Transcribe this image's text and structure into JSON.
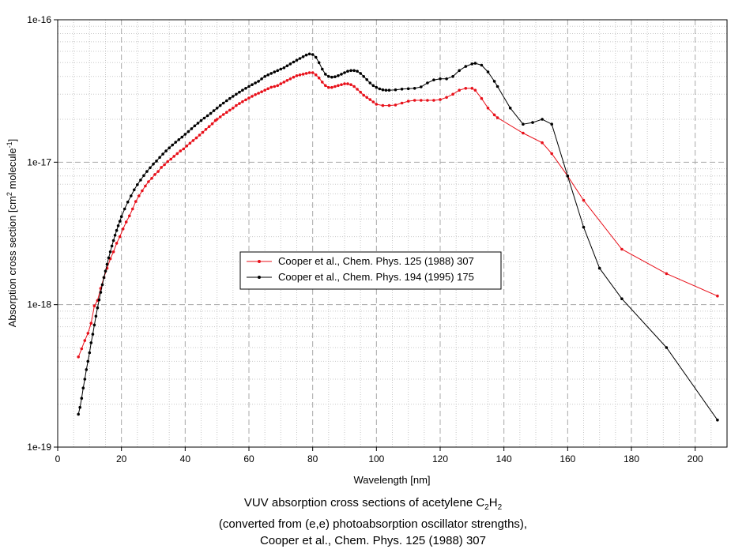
{
  "chart_data": {
    "type": "line",
    "xlabel": "Wavelength [nm]",
    "ylabel": {
      "text": "Absorption cross section [cm",
      "sup1": "2",
      "mid": " molecule",
      "sup2": "-1",
      "end": "]"
    },
    "yscale": "log",
    "xlim": [
      0,
      210
    ],
    "ylim": [
      1e-19,
      1e-16
    ],
    "x_ticks": [
      0,
      20,
      40,
      60,
      80,
      100,
      120,
      140,
      160,
      180,
      200
    ],
    "y_tick_labels": [
      "1e-16",
      "1e-17",
      "1e-18",
      "1e-19"
    ],
    "y_tick_values": [
      1e-16,
      1e-17,
      1e-18,
      1e-19
    ],
    "grid": true,
    "legend_position": "center-left",
    "series": [
      {
        "name": "Cooper et al., Chem. Phys. 125 (1988) 307",
        "color": "#e8101a",
        "x": [
          6.5,
          7.5,
          8.5,
          9.5,
          10.5,
          11.5,
          12.5,
          13.5,
          14.5,
          15.5,
          16.5,
          17.5,
          18.5,
          19.5,
          20.5,
          21.5,
          22.5,
          23.5,
          24.5,
          25.5,
          26.5,
          27.5,
          28.5,
          29.5,
          30.5,
          31.5,
          32.5,
          33.5,
          34.5,
          35.5,
          36.5,
          37.5,
          38.5,
          39.5,
          40.5,
          41.5,
          42.5,
          43.5,
          44.5,
          45.5,
          46.5,
          47.5,
          48.5,
          49.5,
          50,
          51,
          52,
          53,
          54,
          55,
          56,
          57,
          58,
          59,
          60,
          61,
          62,
          63,
          64,
          65,
          66,
          67,
          68,
          69,
          70,
          71,
          72,
          73,
          74,
          75,
          76,
          77,
          78,
          79,
          80,
          81,
          82,
          83,
          84,
          85,
          86,
          87,
          88,
          89,
          90,
          91,
          92,
          93,
          94,
          95,
          96,
          97,
          98,
          99,
          100,
          102,
          104,
          106,
          108,
          110,
          112,
          114,
          116,
          118,
          120,
          122,
          124,
          126,
          128,
          130,
          131,
          133,
          135,
          137,
          138,
          146,
          152,
          155,
          160,
          165,
          177,
          191,
          207
        ],
        "values": [
          4.3e-19,
          4.9e-19,
          5.6e-19,
          6.3e-19,
          7.4e-19,
          9.8e-19,
          1.07e-18,
          1.3e-18,
          1.55e-18,
          1.8e-18,
          2.1e-18,
          2.35e-18,
          2.7e-18,
          3e-18,
          3.4e-18,
          3.8e-18,
          4.2e-18,
          4.7e-18,
          5.3e-18,
          5.8e-18,
          6.3e-18,
          6.8e-18,
          7.3e-18,
          7.7e-18,
          8.2e-18,
          8.6e-18,
          9.2e-18,
          9.6e-18,
          1.01e-17,
          1.05e-17,
          1.1e-17,
          1.15e-17,
          1.2e-17,
          1.24e-17,
          1.3e-17,
          1.36e-17,
          1.42e-17,
          1.48e-17,
          1.55e-17,
          1.62e-17,
          1.7e-17,
          1.78e-17,
          1.86e-17,
          1.96e-17,
          2e-17,
          2.08e-17,
          2.16e-17,
          2.24e-17,
          2.32e-17,
          2.4e-17,
          2.5e-17,
          2.58e-17,
          2.66e-17,
          2.74e-17,
          2.82e-17,
          2.9e-17,
          2.98e-17,
          3.05e-17,
          3.12e-17,
          3.2e-17,
          3.28e-17,
          3.36e-17,
          3.4e-17,
          3.45e-17,
          3.55e-17,
          3.65e-17,
          3.75e-17,
          3.85e-17,
          3.95e-17,
          4.05e-17,
          4.1e-17,
          4.15e-17,
          4.2e-17,
          4.25e-17,
          4.25e-17,
          4.1e-17,
          3.9e-17,
          3.65e-17,
          3.45e-17,
          3.35e-17,
          3.35e-17,
          3.4e-17,
          3.45e-17,
          3.5e-17,
          3.55e-17,
          3.55e-17,
          3.5e-17,
          3.4e-17,
          3.25e-17,
          3.1e-17,
          2.95e-17,
          2.85e-17,
          2.75e-17,
          2.65e-17,
          2.55e-17,
          2.5e-17,
          2.5e-17,
          2.52e-17,
          2.6e-17,
          2.68e-17,
          2.72e-17,
          2.72e-17,
          2.72e-17,
          2.72e-17,
          2.75e-17,
          2.85e-17,
          3e-17,
          3.2e-17,
          3.3e-17,
          3.3e-17,
          3.2e-17,
          2.8e-17,
          2.4e-17,
          2.15e-17,
          2.05e-17,
          1.6e-17,
          1.37e-17,
          1.15e-17,
          8e-18,
          5.4e-18,
          2.45e-18,
          1.65e-18,
          1.15e-18
        ]
      },
      {
        "name": "Cooper et al., Chem. Phys. 194 (1995) 175",
        "color": "#000000",
        "x": [
          6.5,
          7.0,
          7.5,
          8.0,
          8.5,
          9.0,
          9.5,
          10.0,
          10.5,
          11.0,
          11.5,
          12.0,
          12.5,
          13.0,
          13.5,
          14.0,
          14.5,
          15.0,
          15.5,
          16.0,
          16.5,
          17.0,
          17.5,
          18.0,
          18.5,
          19.0,
          19.5,
          20.0,
          21,
          22,
          23,
          24,
          25,
          26,
          27,
          28,
          29,
          30,
          31,
          32,
          33,
          34,
          35,
          36,
          37,
          38,
          39,
          40,
          41,
          42,
          43,
          44,
          45,
          46,
          47,
          48,
          49,
          50,
          51,
          52,
          53,
          54,
          55,
          56,
          57,
          58,
          59,
          60,
          61,
          62,
          63,
          64,
          65,
          66,
          67,
          68,
          69,
          70,
          71,
          72,
          73,
          74,
          75,
          76,
          77,
          78,
          79,
          80,
          81,
          82,
          83,
          84,
          85,
          86,
          87,
          88,
          89,
          90,
          91,
          92,
          93,
          94,
          95,
          96,
          97,
          98,
          99,
          100,
          101,
          102,
          103,
          104,
          106,
          108,
          110,
          112,
          114,
          116,
          118,
          120,
          122,
          124,
          126,
          128,
          130,
          131,
          133,
          135,
          137,
          138,
          142,
          146,
          149,
          152,
          155,
          160,
          165,
          170,
          177,
          191,
          207
        ],
        "values": [
          1.7e-19,
          1.9e-19,
          2.2e-19,
          2.6e-19,
          3e-19,
          3.5e-19,
          4e-19,
          4.6e-19,
          5.4e-19,
          6.2e-19,
          7.2e-19,
          8.3e-19,
          9.5e-19,
          1.08e-18,
          1.22e-18,
          1.38e-18,
          1.55e-18,
          1.72e-18,
          1.92e-18,
          2.13e-18,
          2.35e-18,
          2.58e-18,
          2.82e-18,
          3.07e-18,
          3.32e-18,
          3.58e-18,
          3.85e-18,
          4.15e-18,
          4.7e-18,
          5.25e-18,
          5.8e-18,
          6.4e-18,
          6.95e-18,
          7.5e-18,
          8.05e-18,
          8.6e-18,
          9.15e-18,
          9.7e-18,
          1.02e-17,
          1.08e-17,
          1.14e-17,
          1.2e-17,
          1.26e-17,
          1.32e-17,
          1.38e-17,
          1.44e-17,
          1.5e-17,
          1.57e-17,
          1.64e-17,
          1.72e-17,
          1.8e-17,
          1.88e-17,
          1.96e-17,
          2.04e-17,
          2.12e-17,
          2.2e-17,
          2.3e-17,
          2.4e-17,
          2.5e-17,
          2.6e-17,
          2.7e-17,
          2.8e-17,
          2.9e-17,
          3e-17,
          3.1e-17,
          3.2e-17,
          3.3e-17,
          3.4e-17,
          3.5e-17,
          3.6e-17,
          3.7e-17,
          3.85e-17,
          4e-17,
          4.1e-17,
          4.2e-17,
          4.3e-17,
          4.4e-17,
          4.5e-17,
          4.6e-17,
          4.75e-17,
          4.9e-17,
          5.05e-17,
          5.2e-17,
          5.35e-17,
          5.5e-17,
          5.65e-17,
          5.75e-17,
          5.7e-17,
          5.45e-17,
          5e-17,
          4.5e-17,
          4.15e-17,
          4e-17,
          3.95e-17,
          3.98e-17,
          4.05e-17,
          4.15e-17,
          4.25e-17,
          4.35e-17,
          4.4e-17,
          4.4e-17,
          4.35e-17,
          4.2e-17,
          4e-17,
          3.8e-17,
          3.6e-17,
          3.45e-17,
          3.35e-17,
          3.27e-17,
          3.22e-17,
          3.2e-17,
          3.2e-17,
          3.22e-17,
          3.26e-17,
          3.28e-17,
          3.3e-17,
          3.38e-17,
          3.6e-17,
          3.78e-17,
          3.85e-17,
          3.85e-17,
          4e-17,
          4.4e-17,
          4.7e-17,
          4.9e-17,
          4.95e-17,
          4.8e-17,
          4.3e-17,
          3.7e-17,
          3.4e-17,
          2.4e-17,
          1.85e-17,
          1.9e-17,
          2e-17,
          1.85e-17,
          8e-18,
          3.5e-18,
          1.8e-18,
          1.1e-18,
          5e-19,
          1.55e-19
        ]
      }
    ]
  },
  "caption": {
    "line1_prefix": "VUV absorption cross sections of acetylene C",
    "sub1": "2",
    "line1_mid": "H",
    "sub2": "2",
    "line2": "(converted from (e,e) photoabsorption oscillator strengths),",
    "line3": "Cooper et al., Chem. Phys. 125 (1988) 307"
  }
}
